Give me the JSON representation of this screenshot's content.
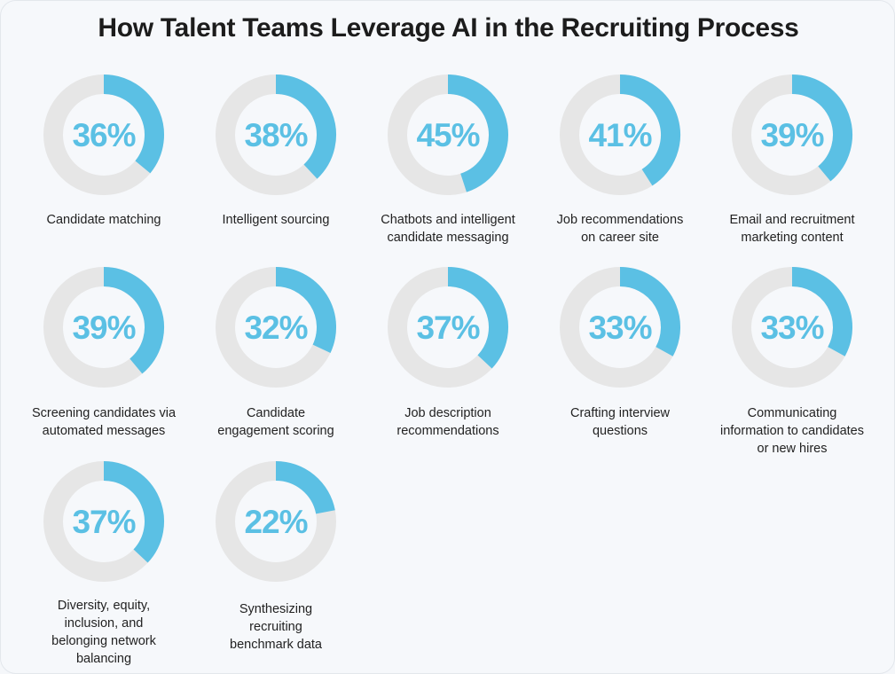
{
  "chart_data": {
    "type": "pie",
    "variant": "donut-grid",
    "title": "How Talent Teams Leverage AI in the Recruiting Process",
    "unit": "%",
    "colors": {
      "fill": "#5bc0e4",
      "track": "#e6e6e6",
      "text": "#5bc0e4"
    },
    "items": [
      {
        "label_lines": [
          "Candidate matching"
        ],
        "value": 36,
        "display": "36%"
      },
      {
        "label_lines": [
          "Intelligent sourcing"
        ],
        "value": 38,
        "display": "38%"
      },
      {
        "label_lines": [
          "Chatbots and intelligent",
          "candidate messaging"
        ],
        "value": 45,
        "display": "45%"
      },
      {
        "label_lines": [
          "Job recommendations",
          "on career site"
        ],
        "value": 41,
        "display": "41%"
      },
      {
        "label_lines": [
          "Email and recruitment",
          "marketing content"
        ],
        "value": 39,
        "display": "39%"
      },
      {
        "label_lines": [
          "Screening candidates via",
          "automated messages"
        ],
        "value": 39,
        "display": "39%"
      },
      {
        "label_lines": [
          "Candidate",
          "engagement scoring"
        ],
        "value": 32,
        "display": "32%"
      },
      {
        "label_lines": [
          "Job description",
          "recommendations"
        ],
        "value": 37,
        "display": "37%"
      },
      {
        "label_lines": [
          "Crafting interview",
          "questions"
        ],
        "value": 33,
        "display": "33%"
      },
      {
        "label_lines": [
          "Communicating",
          "information to candidates",
          "or new hires"
        ],
        "value": 33,
        "display": "33%"
      },
      {
        "label_lines": [
          "Diversity, equity,",
          "inclusion, and",
          "belonging network",
          "balancing"
        ],
        "value": 37,
        "display": "37%"
      },
      {
        "label_lines": [
          "Synthesizing",
          "recruiting",
          "benchmark data"
        ],
        "value": 22,
        "display": "22%"
      }
    ]
  }
}
